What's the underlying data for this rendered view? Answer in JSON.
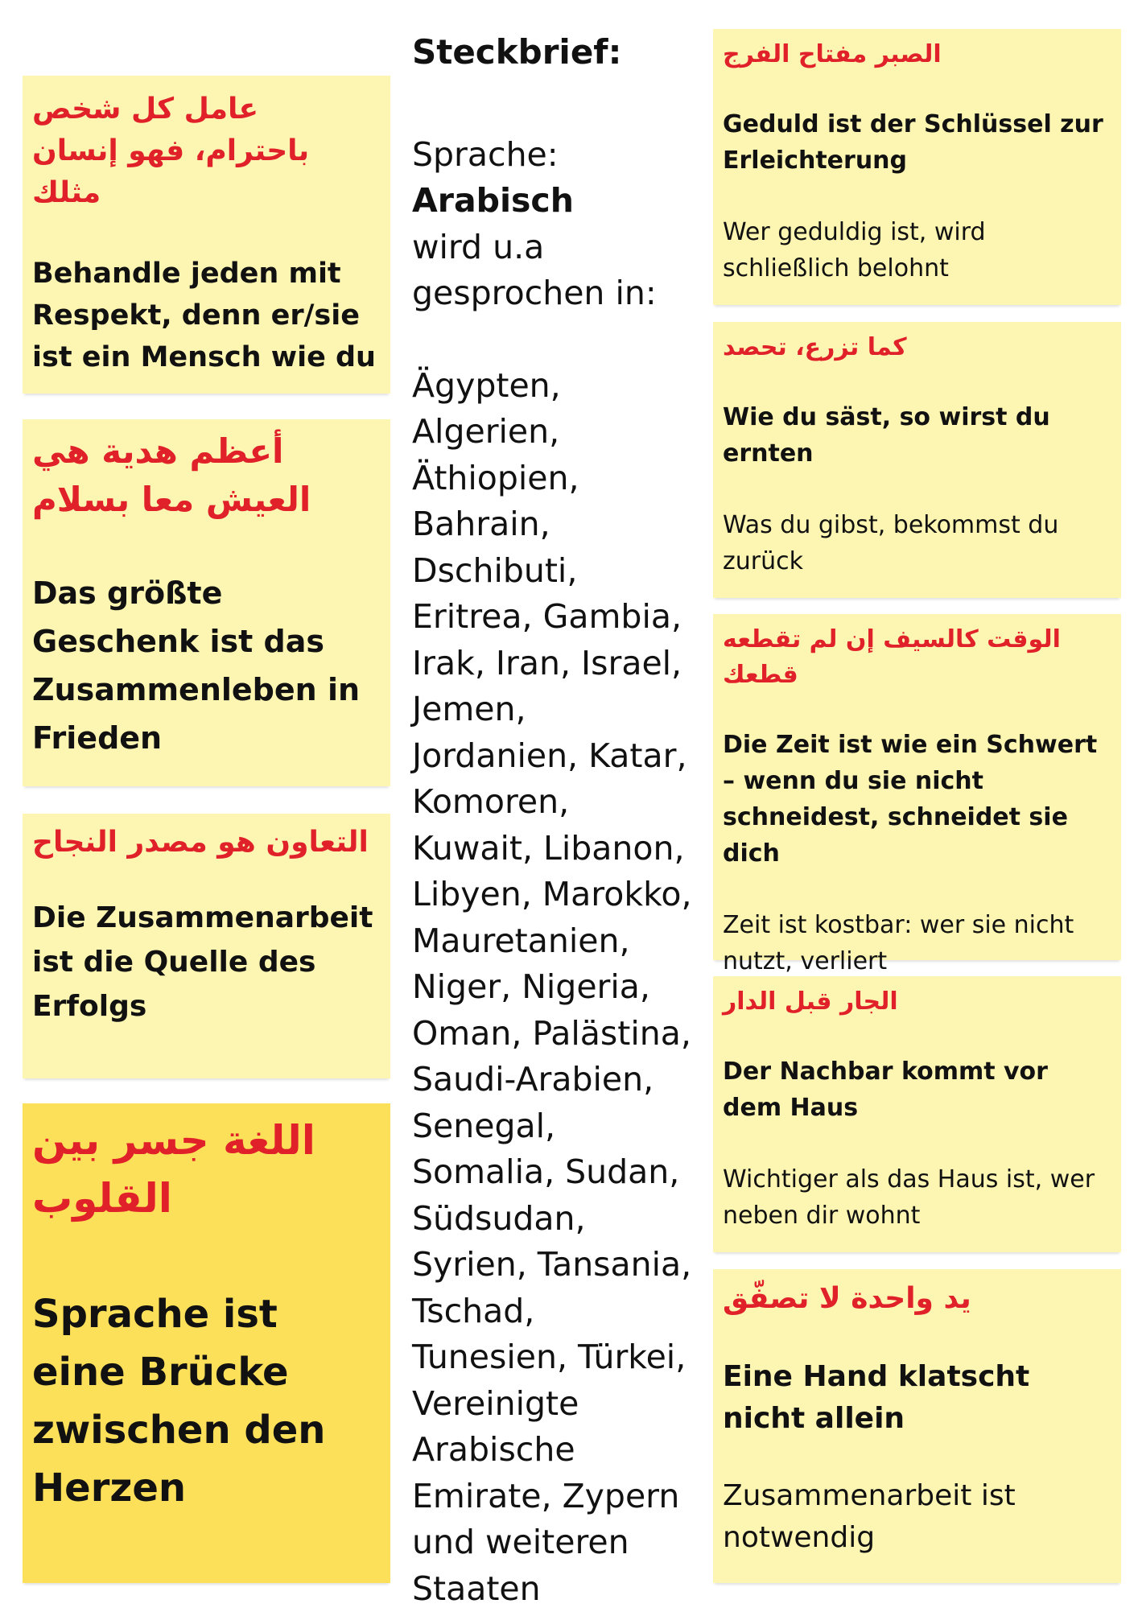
{
  "profile": {
    "title": "Steckbrief:",
    "language_label": "Sprache:",
    "language": "Arabisch",
    "spoken_in_label_1": "wird u.a",
    "spoken_in_label_2": "gesprochen in:",
    "countries": "Ägypten, Algerien, Äthiopien, Bahrain, Dschibuti, Eritrea, Gambia, Irak, Iran, Israel, Jemen, Jordanien, Katar, Komoren, Kuwait, Libanon, Libyen, Marokko, Mauretanien, Niger, Nigeria, Oman, Palästina, Saudi-Arabien, Senegal, Somalia, Sudan, Südsudan, Syrien, Tansania, Tschad, Tunesien, Türkei, Vereinigte Arabische Emirate, Zypern und weiteren Staaten"
  },
  "left_notes": [
    {
      "arabic": "عامل كل شخص باحترام، فهو إنسان مثلك",
      "german": "Behandle jeden mit Respekt, denn er/sie ist ein Mensch wie du"
    },
    {
      "arabic": "أعظم هدية هي العيش معا بسلام",
      "german": "Das größte Geschenk ist das Zusammenleben in Frieden"
    },
    {
      "arabic": "التعاون هو مصدر النجاح",
      "german": "Die Zusammenarbeit ist die Quelle des Erfolgs"
    },
    {
      "arabic": "اللغة جسر بين القلوب",
      "german": "Sprache ist eine Brücke zwischen den Herzen"
    }
  ],
  "right_notes": [
    {
      "arabic": "الصبر مفتاح الفرج",
      "german": "Geduld ist der Schlüssel zur Erleichterung",
      "meaning": "Wer geduldig ist, wird schließlich belohnt"
    },
    {
      "arabic": "كما تزرع، تحصد",
      "german": "Wie du säst, so wirst du ernten",
      "meaning": "Was du gibst, bekommst du zurück"
    },
    {
      "arabic": "الوقت كالسيف إن لم تقطعه قطعك",
      "german": "Die Zeit ist wie ein Schwert – wenn du sie nicht schneidest, schneidet sie dich",
      "meaning": "Zeit ist kostbar: wer sie nicht nutzt, verliert"
    },
    {
      "arabic": "الجار قبل الدار",
      "german": "Der Nachbar kommt vor dem Haus",
      "meaning": "Wichtiger als das Haus ist, wer neben dir wohnt"
    },
    {
      "arabic": "يد واحدة لا تصفّق",
      "german": "Eine Hand klatscht nicht allein",
      "meaning": "Zusammenarbeit ist notwendig"
    }
  ],
  "colors": {
    "note": "#fdf6b2",
    "note_highlight": "#fde05a",
    "arabic_text": "#e0212a"
  }
}
